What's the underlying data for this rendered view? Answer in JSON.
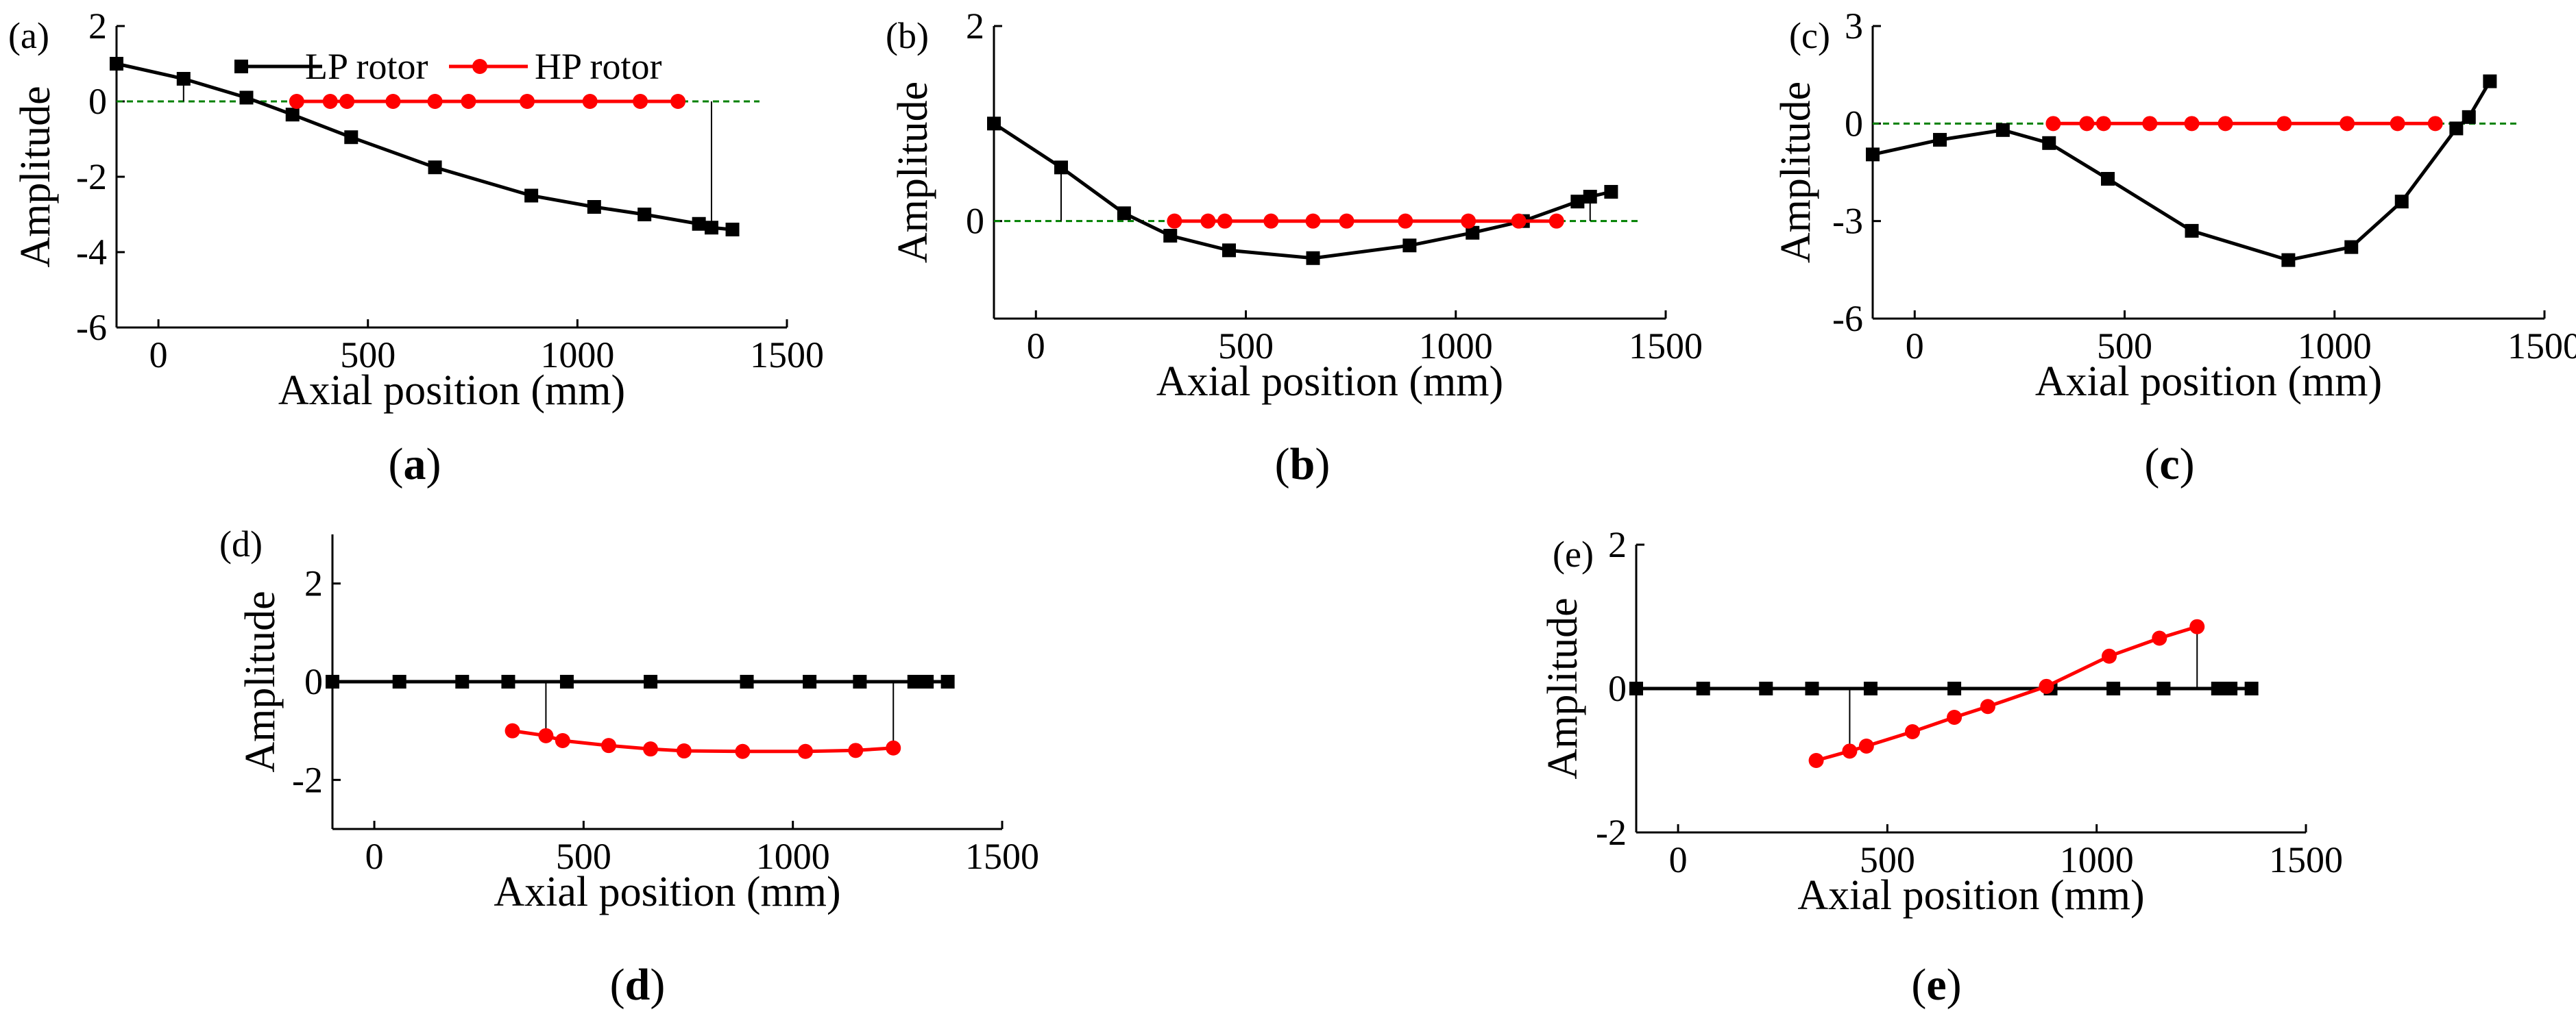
{
  "figure": {
    "captions": [
      {
        "paren_open": "(",
        "letter": "a",
        "paren_close": ")"
      },
      {
        "paren_open": "(",
        "letter": "b",
        "paren_close": ")"
      },
      {
        "paren_open": "(",
        "letter": "c",
        "paren_close": ")"
      },
      {
        "paren_open": "(",
        "letter": "d",
        "paren_close": ")"
      },
      {
        "paren_open": "(",
        "letter": "e",
        "paren_close": ")"
      }
    ],
    "colors": {
      "lp": "#000000",
      "hp": "#ff0000",
      "zero_line": "#008000",
      "axis": "#000000",
      "stem": "#000000"
    }
  },
  "chart_data": [
    {
      "type": "line",
      "panel_label": "(a)",
      "xlabel": "Axial position (mm)",
      "ylabel": "Amplitude",
      "xlim": [
        -100,
        1500
      ],
      "ylim": [
        -6,
        2
      ],
      "xticks": [
        0,
        500,
        1000,
        1500
      ],
      "yticks": [
        2,
        0,
        -2,
        -4,
        -6
      ],
      "zero_line": "dashed",
      "legend": {
        "position": "top",
        "entries": [
          "LP rotor",
          "HP rotor"
        ]
      },
      "stems": [
        [
          60,
          0.6,
          0
        ],
        [
          1320,
          -3.35,
          0
        ]
      ],
      "series": [
        {
          "name": "LP rotor",
          "marker": "square",
          "x": [
            -100,
            60,
            210,
            320,
            460,
            660,
            890,
            1040,
            1160,
            1290,
            1320,
            1370
          ],
          "y": [
            1.0,
            0.6,
            0.1,
            -0.35,
            -0.95,
            -1.75,
            -2.5,
            -2.8,
            -3.0,
            -3.25,
            -3.35,
            -3.4
          ]
        },
        {
          "name": "HP rotor",
          "marker": "circle",
          "x": [
            330,
            410,
            450,
            560,
            660,
            740,
            880,
            1030,
            1150,
            1240
          ],
          "y": [
            0,
            0,
            0,
            0,
            0,
            0,
            0,
            0,
            0,
            0
          ]
        }
      ]
    },
    {
      "type": "line",
      "panel_label": "(b)",
      "xlabel": "Axial position (mm)",
      "ylabel": "Amplitude",
      "xlim": [
        -100,
        1500
      ],
      "ylim": [
        -1,
        2
      ],
      "xticks": [
        0,
        500,
        1000,
        1500
      ],
      "yticks": [
        2,
        0
      ],
      "zero_line": "dashed",
      "stems": [
        [
          60,
          0.55,
          0
        ],
        [
          1320,
          0.25,
          0
        ]
      ],
      "series": [
        {
          "name": "LP rotor",
          "marker": "square",
          "x": [
            -100,
            60,
            210,
            320,
            460,
            660,
            890,
            1040,
            1160,
            1290,
            1320,
            1370
          ],
          "y": [
            1.0,
            0.55,
            0.08,
            -0.15,
            -0.3,
            -0.38,
            -0.25,
            -0.12,
            0.0,
            0.2,
            0.25,
            0.3
          ]
        },
        {
          "name": "HP rotor",
          "marker": "circle",
          "x": [
            330,
            410,
            450,
            560,
            660,
            740,
            880,
            1030,
            1150,
            1240
          ],
          "y": [
            0,
            0,
            0,
            0,
            0,
            0,
            0,
            0,
            0,
            0
          ]
        }
      ]
    },
    {
      "type": "line",
      "panel_label": "(c)",
      "xlabel": "Axial position (mm)",
      "ylabel": "Amplitude",
      "xlim": [
        -100,
        1500
      ],
      "ylim": [
        -6,
        3
      ],
      "xticks": [
        0,
        500,
        1000,
        1500
      ],
      "yticks": [
        3,
        0,
        -3,
        -6
      ],
      "zero_line": "dashed",
      "stems": [],
      "series": [
        {
          "name": "LP rotor",
          "marker": "square",
          "x": [
            -100,
            60,
            210,
            320,
            460,
            660,
            890,
            1040,
            1160,
            1290,
            1320,
            1370
          ],
          "y": [
            -0.95,
            -0.5,
            -0.2,
            -0.6,
            -1.7,
            -3.3,
            -4.2,
            -3.8,
            -2.4,
            -0.15,
            0.2,
            1.3
          ]
        },
        {
          "name": "HP rotor",
          "marker": "circle",
          "x": [
            330,
            410,
            450,
            560,
            660,
            740,
            880,
            1030,
            1150,
            1240
          ],
          "y": [
            0,
            0,
            0,
            0,
            0,
            0,
            0,
            0,
            0,
            0
          ]
        }
      ]
    },
    {
      "type": "line",
      "panel_label": "(d)",
      "xlabel": "Axial position (mm)",
      "ylabel": "Amplitude",
      "xlim": [
        -100,
        1500
      ],
      "ylim": [
        -3,
        3
      ],
      "xticks": [
        0,
        500,
        1000,
        1500
      ],
      "yticks": [
        2,
        0,
        -2
      ],
      "zero_line": "none",
      "stems": [
        [
          410,
          -1.1,
          0
        ],
        [
          1240,
          -1.35,
          0
        ]
      ],
      "series": [
        {
          "name": "LP rotor",
          "marker": "square",
          "x": [
            -100,
            60,
            210,
            320,
            460,
            660,
            890,
            1040,
            1160,
            1290,
            1320,
            1370
          ],
          "y": [
            0,
            0,
            0,
            0,
            0,
            0,
            0,
            0,
            0,
            0,
            0,
            0
          ]
        },
        {
          "name": "HP rotor",
          "marker": "circle",
          "x": [
            330,
            410,
            450,
            560,
            660,
            740,
            880,
            1030,
            1150,
            1240
          ],
          "y": [
            -1.0,
            -1.1,
            -1.2,
            -1.3,
            -1.37,
            -1.41,
            -1.42,
            -1.42,
            -1.4,
            -1.35
          ]
        }
      ]
    },
    {
      "type": "line",
      "panel_label": "(e)",
      "xlabel": "Axial position (mm)",
      "ylabel": "Amplitude",
      "xlim": [
        -100,
        1500
      ],
      "ylim": [
        -2,
        2
      ],
      "xticks": [
        0,
        500,
        1000,
        1500
      ],
      "yticks": [
        2,
        0,
        -2
      ],
      "zero_line": "none",
      "stems": [
        [
          410,
          -0.87,
          0
        ],
        [
          1240,
          0.86,
          0
        ]
      ],
      "series": [
        {
          "name": "LP rotor",
          "marker": "square",
          "x": [
            -100,
            60,
            210,
            320,
            460,
            660,
            890,
            1040,
            1160,
            1290,
            1320,
            1370
          ],
          "y": [
            0,
            0,
            0,
            0,
            0,
            0,
            0,
            0,
            0,
            0,
            0,
            0
          ]
        },
        {
          "name": "HP rotor",
          "marker": "circle",
          "x": [
            330,
            410,
            450,
            560,
            660,
            740,
            880,
            1030,
            1150,
            1240
          ],
          "y": [
            -1.0,
            -0.87,
            -0.8,
            -0.6,
            -0.4,
            -0.25,
            0.03,
            0.45,
            0.7,
            0.86
          ]
        }
      ]
    }
  ]
}
